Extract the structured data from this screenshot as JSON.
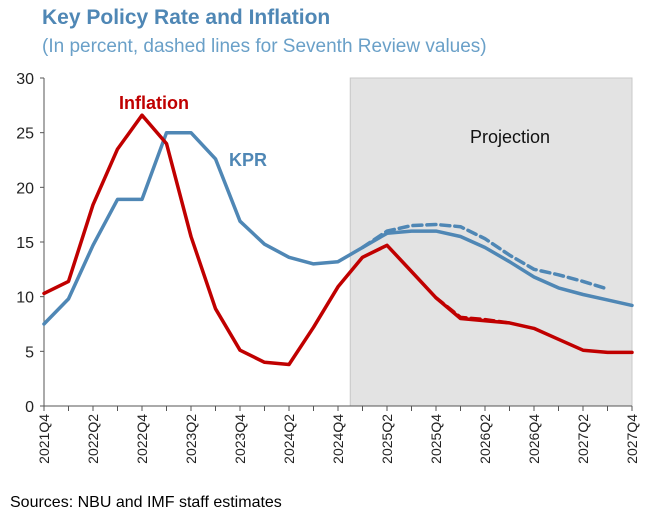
{
  "chart_data": {
    "type": "line",
    "title": "Key Policy Rate and Inflation",
    "subtitle": "(In percent, dashed lines for Seventh Review values)",
    "source": "Sources: NBU and IMF staff estimates",
    "ylim": [
      0,
      30
    ],
    "yticks": [
      0,
      5,
      10,
      15,
      20,
      25,
      30
    ],
    "x": [
      "2021Q4",
      "2022Q1",
      "2022Q2",
      "2022Q3",
      "2022Q4",
      "2023Q1",
      "2023Q2",
      "2023Q3",
      "2023Q4",
      "2024Q1",
      "2024Q2",
      "2024Q3",
      "2024Q4",
      "2025Q1",
      "2025Q2",
      "2025Q3",
      "2025Q4",
      "2026Q1",
      "2026Q2",
      "2026Q3",
      "2026Q4",
      "2027Q1",
      "2027Q2",
      "2027Q3",
      "2027Q4"
    ],
    "x_tick_labels": [
      "2021Q4",
      "2022Q2",
      "2022Q4",
      "2023Q2",
      "2023Q4",
      "2024Q2",
      "2024Q4",
      "2025Q2",
      "2025Q4",
      "2026Q2",
      "2026Q4",
      "2027Q2",
      "2027Q4"
    ],
    "projection_start": "2025Q1",
    "projection_label": "Projection",
    "series": [
      {
        "name": "Inflation",
        "label": "Inflation",
        "color": "#c00000",
        "style": "solid",
        "values": [
          10.3,
          11.4,
          18.4,
          23.5,
          26.6,
          24.0,
          15.5,
          8.9,
          5.1,
          4.0,
          3.8,
          7.2,
          10.9,
          13.6,
          14.7,
          12.3,
          9.9,
          8.0,
          7.8,
          7.6,
          7.1,
          6.1,
          5.1,
          4.9,
          4.9
        ]
      },
      {
        "name": "KPR",
        "label": "KPR",
        "color": "#4f87b5",
        "style": "solid",
        "values": [
          7.5,
          9.8,
          14.7,
          18.9,
          18.9,
          25.0,
          25.0,
          22.6,
          16.9,
          14.8,
          13.6,
          13.0,
          13.2,
          14.5,
          15.8,
          16.0,
          16.0,
          15.5,
          14.5,
          13.2,
          11.8,
          10.8,
          10.2,
          9.7,
          9.2
        ]
      },
      {
        "name": "KPR (Seventh Review)",
        "color": "#4f87b5",
        "style": "dashed",
        "values": [
          null,
          null,
          null,
          null,
          null,
          null,
          null,
          null,
          null,
          null,
          null,
          null,
          null,
          14.5,
          16.0,
          16.5,
          16.6,
          16.4,
          15.3,
          13.8,
          12.5,
          12.0,
          11.4,
          10.7,
          null
        ]
      },
      {
        "name": "Inflation (Seventh Review)",
        "color": "#c00000",
        "style": "dashed",
        "values": [
          null,
          null,
          null,
          null,
          null,
          null,
          null,
          null,
          null,
          null,
          null,
          null,
          null,
          null,
          null,
          null,
          9.9,
          8.1,
          7.9,
          7.6,
          null,
          null,
          null,
          null,
          null
        ]
      }
    ]
  }
}
